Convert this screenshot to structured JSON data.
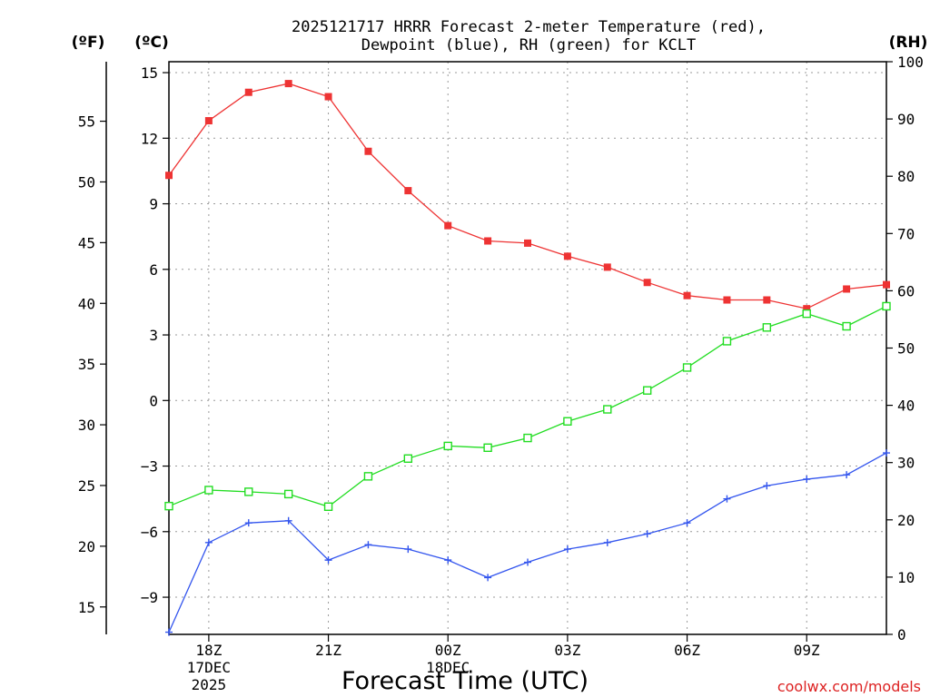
{
  "chart_data": {
    "type": "line",
    "title_lines": [
      "2025121717 HRRR Forecast 2-meter Temperature (red),",
      "Dewpoint (blue), RH (green) for KCLT"
    ],
    "xlabel": "Forecast Time (UTC)",
    "credit": "coolwx.com/models",
    "unit_labels": {
      "fahrenheit": "(ºF)",
      "celsius": "(ºC)",
      "rh": "(RH)"
    },
    "x_hours": [
      17,
      18,
      19,
      20,
      21,
      22,
      23,
      24,
      25,
      26,
      27,
      28,
      29,
      30,
      31,
      32,
      33,
      34,
      35
    ],
    "xlim": [
      17,
      35
    ],
    "x_ticks": [
      {
        "hour": 18,
        "lines": [
          "18Z",
          "17DEC",
          "2025"
        ]
      },
      {
        "hour": 21,
        "lines": [
          "21Z"
        ]
      },
      {
        "hour": 24,
        "lines": [
          "00Z",
          "18DEC"
        ]
      },
      {
        "hour": 27,
        "lines": [
          "03Z"
        ]
      },
      {
        "hour": 30,
        "lines": [
          "06Z"
        ]
      },
      {
        "hour": 33,
        "lines": [
          "09Z"
        ]
      }
    ],
    "celsius_axis": {
      "ylim": [
        -10.7,
        15.5
      ],
      "ticks": [
        "15",
        "12",
        "9",
        "6",
        "3",
        "0",
        "−3",
        "−6",
        "−9"
      ],
      "tick_values": [
        15,
        12,
        9,
        6,
        3,
        0,
        -3,
        -6,
        -9
      ]
    },
    "fahrenheit_axis": {
      "ticks": [
        "55",
        "50",
        "45",
        "40",
        "35",
        "30",
        "25",
        "20",
        "15"
      ],
      "tick_values": [
        55,
        50,
        45,
        40,
        35,
        30,
        25,
        20,
        15
      ]
    },
    "rh_axis": {
      "ylim": [
        0,
        100
      ],
      "ticks": [
        "100",
        "90",
        "80",
        "70",
        "60",
        "50",
        "40",
        "30",
        "20",
        "10",
        "0"
      ],
      "tick_values": [
        100,
        90,
        80,
        70,
        60,
        50,
        40,
        30,
        20,
        10,
        0
      ]
    },
    "grid": true,
    "series": [
      {
        "name": "2-meter Temperature",
        "color": "#ee3333",
        "axis": "celsius",
        "marker": "filled-square",
        "values": [
          10.3,
          12.8,
          14.1,
          14.5,
          13.9,
          11.4,
          9.6,
          8.0,
          7.3,
          7.2,
          6.6,
          6.1,
          5.4,
          4.8,
          4.6,
          4.6,
          4.2,
          5.1,
          5.3
        ]
      },
      {
        "name": "Dewpoint",
        "color": "#3355ee",
        "axis": "celsius",
        "marker": "plus",
        "values": [
          -10.6,
          -6.5,
          -5.6,
          -5.5,
          -7.3,
          -6.6,
          -6.8,
          -7.3,
          -8.1,
          -7.4,
          -6.8,
          -6.5,
          -6.1,
          -5.6,
          -4.5,
          -3.9,
          -3.6,
          -3.4,
          -2.4
        ]
      },
      {
        "name": "Relative Humidity",
        "color": "#22dd22",
        "axis": "rh",
        "marker": "open-square",
        "values": [
          22.4,
          25.2,
          24.9,
          24.5,
          22.3,
          27.6,
          30.7,
          32.9,
          32.6,
          34.3,
          37.2,
          39.3,
          42.6,
          46.6,
          51.2,
          53.6,
          56.0,
          53.8,
          57.3
        ]
      }
    ]
  }
}
